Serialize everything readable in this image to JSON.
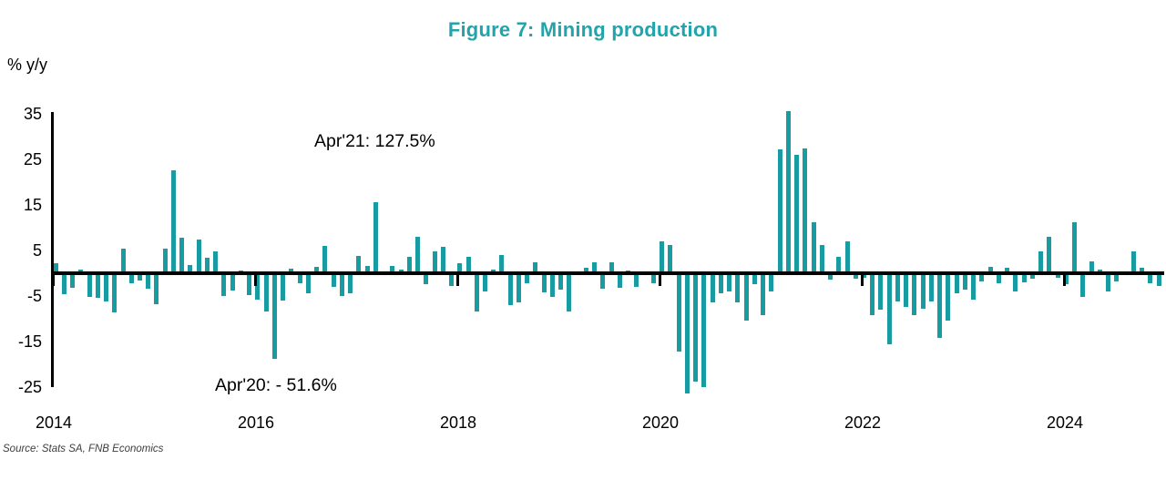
{
  "source": "Source: Stats SA, FNB Economics",
  "colors": {
    "bar": "#189CA2",
    "title": "#23A3AB",
    "axis": "#000000",
    "source_text": "#3d3d3d"
  },
  "chart_data": {
    "type": "bar",
    "title": "Figure 7: Mining production",
    "ylabel": "% y/y",
    "xlabel": "",
    "legend": "none",
    "grid": "off",
    "ylim": [
      -26,
      35.9
    ],
    "yticks": [
      35,
      25,
      15,
      5,
      -5,
      -15,
      -25
    ],
    "xticks": [
      2014,
      2016,
      2018,
      2020,
      2022,
      2024
    ],
    "annotations": [
      {
        "text": "Apr'21: 127.5%",
        "month": "2021-04",
        "value": 127.5
      },
      {
        "text": "Apr'20: - 51.6%",
        "month": "2020-04",
        "value": -51.6
      }
    ],
    "categories": [
      "2014-01",
      "2014-02",
      "2014-03",
      "2014-04",
      "2014-05",
      "2014-06",
      "2014-07",
      "2014-08",
      "2014-09",
      "2014-10",
      "2014-11",
      "2014-12",
      "2015-01",
      "2015-02",
      "2015-03",
      "2015-04",
      "2015-05",
      "2015-06",
      "2015-07",
      "2015-08",
      "2015-09",
      "2015-10",
      "2015-11",
      "2015-12",
      "2016-01",
      "2016-02",
      "2016-03",
      "2016-04",
      "2016-05",
      "2016-06",
      "2016-07",
      "2016-08",
      "2016-09",
      "2016-10",
      "2016-11",
      "2016-12",
      "2017-01",
      "2017-02",
      "2017-03",
      "2017-04",
      "2017-05",
      "2017-06",
      "2017-07",
      "2017-08",
      "2017-09",
      "2017-10",
      "2017-11",
      "2017-12",
      "2018-01",
      "2018-02",
      "2018-03",
      "2018-04",
      "2018-05",
      "2018-06",
      "2018-07",
      "2018-08",
      "2018-09",
      "2018-10",
      "2018-11",
      "2018-12",
      "2019-01",
      "2019-02",
      "2019-03",
      "2019-04",
      "2019-05",
      "2019-06",
      "2019-07",
      "2019-08",
      "2019-09",
      "2019-10",
      "2019-11",
      "2019-12",
      "2020-01",
      "2020-02",
      "2020-03",
      "2020-04",
      "2020-05",
      "2020-06",
      "2020-07",
      "2020-08",
      "2020-09",
      "2020-10",
      "2020-11",
      "2020-12",
      "2021-01",
      "2021-02",
      "2021-03",
      "2021-04",
      "2021-05",
      "2021-06",
      "2021-07",
      "2021-08",
      "2021-09",
      "2021-10",
      "2021-11",
      "2021-12",
      "2022-01",
      "2022-02",
      "2022-03",
      "2022-04",
      "2022-05",
      "2022-06",
      "2022-07",
      "2022-08",
      "2022-09",
      "2022-10",
      "2022-11",
      "2022-12",
      "2023-01",
      "2023-02",
      "2023-03",
      "2023-04",
      "2023-05",
      "2023-06",
      "2023-07",
      "2023-08",
      "2023-09",
      "2023-10",
      "2023-11",
      "2023-12",
      "2024-01",
      "2024-02",
      "2024-03",
      "2024-04",
      "2024-05",
      "2024-06",
      "2024-07",
      "2024-08",
      "2024-09",
      "2024-10",
      "2024-11",
      "2024-12"
    ],
    "values": [
      2.3,
      -4.2,
      -2.7,
      0.8,
      -4.8,
      -5.0,
      -5.7,
      -8.1,
      5.4,
      -1.8,
      -1.2,
      -3.0,
      -6.4,
      5.4,
      22.7,
      7.9,
      1.8,
      7.5,
      3.4,
      4.8,
      -4.5,
      -3.4,
      0.6,
      -4.4,
      -5.3,
      -8.0,
      -18.3,
      -5.5,
      1.0,
      -1.8,
      -4.0,
      1.5,
      6.1,
      -2.5,
      -4.5,
      -3.9,
      3.9,
      1.7,
      15.7,
      0.3,
      1.6,
      0.8,
      3.7,
      8.1,
      -1.9,
      4.8,
      5.9,
      -2.3,
      2.2,
      3.7,
      -7.9,
      -3.5,
      0.8,
      4.0,
      -6.5,
      -6.0,
      -1.7,
      2.5,
      -3.7,
      -4.7,
      -3.2,
      -7.9,
      0.5,
      1.3,
      2.5,
      -3.0,
      2.4,
      -2.8,
      0.7,
      -2.5,
      0.4,
      -1.8,
      7.0,
      6.2,
      -16.7,
      -51.6,
      -23.3,
      -24.6,
      -6.0,
      -3.9,
      -3.5,
      -5.9,
      -9.9,
      -1.9,
      -8.7,
      -3.5,
      27.2,
      127.5,
      26.0,
      27.5,
      11.3,
      6.3,
      -1.0,
      3.7,
      7.1,
      -0.8,
      -0.6,
      -8.8,
      -7.5,
      -15.1,
      -5.7,
      -7.0,
      -8.7,
      -7.4,
      -5.8,
      -13.7,
      -9.9,
      -4.0,
      -3.2,
      -5.3,
      -1.3,
      1.5,
      -1.7,
      1.3,
      -3.5,
      -1.5,
      -0.8,
      4.8,
      8.0,
      -0.5,
      -2.0,
      11.2,
      -4.7,
      2.6,
      0.9,
      -3.6,
      -1.3,
      0.4,
      4.9,
      1.3,
      -1.8,
      -2.4
    ]
  }
}
